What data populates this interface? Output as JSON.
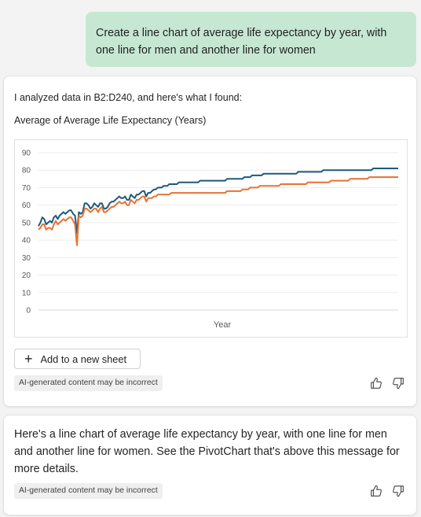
{
  "user_message": "Create a line chart of average life expectancy by year, with one line for men and another line for women",
  "response": {
    "intro": "I analyzed data in B2:D240, and here's what I found:",
    "chart_title": "Average of Average Life Expectancy (Years)",
    "add_button_label": "Add to a new sheet",
    "disclaimer": "AI-generated content may be incorrect"
  },
  "summary": {
    "text": "Here's a line chart of average life expectancy by year, with one line for men and another line for women. See the PivotChart that's above this message for more details.",
    "disclaimer": "AI-generated content may be incorrect"
  },
  "icons": {
    "plus": "plus-icon",
    "like": "thumbs-up-icon",
    "dislike": "thumbs-down-icon"
  },
  "colors": {
    "user_bubble": "#c6e8d3",
    "series_women": "#1d5a7a",
    "series_men": "#e97132"
  },
  "chart_data": {
    "type": "line",
    "title": "Average of Average Life Expectancy (Years)",
    "xlabel": "Year",
    "ylabel": "",
    "ylim": [
      0,
      90
    ],
    "yticks": [
      0,
      10,
      20,
      30,
      40,
      50,
      60,
      70,
      80,
      90
    ],
    "grid": true,
    "legend": "none",
    "series": [
      {
        "color": "#1d5a7a",
        "values": [
          48,
          50,
          53,
          52,
          49,
          50,
          51,
          50,
          53,
          54,
          52,
          54,
          55,
          56,
          55,
          56,
          57,
          57,
          55,
          54,
          44,
          56,
          55,
          56,
          61,
          61,
          60,
          58,
          59,
          61,
          60,
          59,
          61,
          61,
          58,
          58,
          59,
          61,
          62,
          62,
          63,
          64,
          65,
          64,
          64,
          65,
          63,
          63,
          66,
          65,
          64,
          66,
          66,
          67,
          68,
          68,
          65,
          67,
          67,
          68,
          69,
          69,
          70,
          70,
          70,
          71,
          71,
          71,
          72,
          72,
          72,
          72,
          72,
          73,
          73,
          73,
          73,
          73,
          73,
          73,
          73,
          73,
          73,
          73,
          74,
          74,
          74,
          74,
          74,
          74,
          74,
          74,
          74,
          74,
          74,
          74,
          74,
          74,
          75,
          75,
          75,
          75,
          75,
          75,
          75,
          75,
          75,
          76,
          76,
          76,
          76,
          77,
          77,
          77,
          77,
          77,
          77,
          78,
          78,
          78,
          78,
          78,
          78,
          78,
          78,
          78,
          78,
          78,
          78,
          78,
          78,
          78,
          78,
          78,
          78,
          79,
          79,
          79,
          79,
          79,
          79,
          79,
          79,
          79,
          79,
          79,
          79,
          79,
          80,
          80,
          80,
          80,
          80,
          80,
          80,
          80,
          80,
          80,
          80,
          80,
          80,
          80,
          80,
          80,
          80,
          80,
          80,
          80,
          80,
          80,
          80,
          80,
          80,
          80,
          81,
          81,
          81,
          81,
          81,
          81,
          81,
          81,
          81,
          81,
          81,
          81,
          81,
          81
        ]
      },
      {
        "color": "#e97132",
        "values": [
          46,
          47,
          49,
          49,
          46,
          47,
          47,
          46,
          49,
          51,
          49,
          50,
          51,
          52,
          51,
          52,
          53,
          53,
          51,
          49,
          37,
          54,
          53,
          54,
          58,
          58,
          57,
          56,
          57,
          58,
          58,
          56,
          58,
          59,
          56,
          56,
          57,
          58,
          59,
          59,
          60,
          61,
          62,
          61,
          61,
          62,
          60,
          60,
          63,
          62,
          61,
          63,
          63,
          64,
          65,
          65,
          62,
          64,
          64,
          64,
          65,
          65,
          66,
          66,
          66,
          66,
          66,
          66,
          66,
          67,
          67,
          67,
          67,
          67,
          67,
          67,
          67,
          67,
          67,
          67,
          67,
          67,
          67,
          67,
          67,
          67,
          67,
          67,
          67,
          67,
          67,
          67,
          67,
          67,
          67,
          67,
          67,
          67,
          68,
          68,
          68,
          68,
          68,
          68,
          68,
          68,
          69,
          69,
          69,
          69,
          70,
          70,
          70,
          70,
          70,
          71,
          71,
          71,
          71,
          71,
          71,
          71,
          71,
          71,
          71,
          71,
          72,
          72,
          72,
          72,
          72,
          72,
          72,
          72,
          72,
          72,
          72,
          72,
          72,
          72,
          73,
          73,
          73,
          73,
          73,
          73,
          73,
          73,
          73,
          73,
          73,
          73,
          74,
          74,
          74,
          74,
          74,
          74,
          74,
          74,
          74,
          74,
          75,
          75,
          75,
          75,
          75,
          75,
          75,
          75,
          75,
          75,
          76,
          76,
          76,
          76,
          76,
          76,
          76,
          76,
          76,
          76,
          76,
          76,
          76,
          76,
          76,
          76
        ]
      }
    ]
  }
}
